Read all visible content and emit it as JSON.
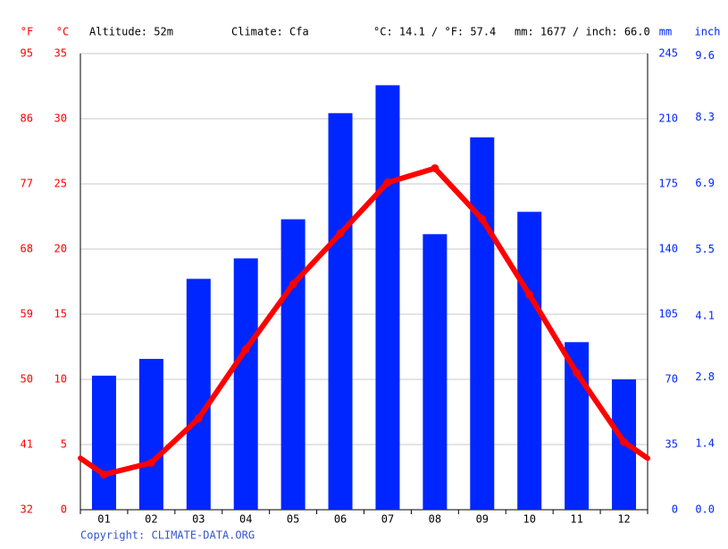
{
  "chart_data": {
    "type": "bar",
    "y_alt_unit": "°F",
    "y_unit": "°C",
    "altitude": "Altitude: 52m",
    "climate": "Climate: Cfa",
    "temp_summary": "°C: 14.1 / °F: 57.4",
    "precip_summary": "mm: 1677 / inch: 66.0",
    "y2_unit": "mm",
    "y2_alt_unit": "inch",
    "copyright": "Copyright: CLIMATE-DATA.ORG",
    "categories": [
      "01",
      "02",
      "03",
      "04",
      "05",
      "06",
      "07",
      "08",
      "09",
      "10",
      "11",
      "12"
    ],
    "series": [
      {
        "type": "bar",
        "axis": "y2",
        "color": "#0026ff",
        "values": [
          72,
          81,
          124,
          135,
          156,
          213,
          228,
          148,
          200,
          160,
          90,
          70
        ]
      },
      {
        "type": "line",
        "axis": "y",
        "color": "#ff0000",
        "values": [
          2.7,
          3.6,
          7.0,
          12.3,
          17.3,
          21.2,
          25.1,
          26.2,
          22.3,
          16.5,
          10.5,
          5.2
        ]
      }
    ],
    "ylim": [
      0,
      35
    ],
    "yticks": [
      0,
      5,
      10,
      15,
      20,
      25,
      30,
      35
    ],
    "y_alt_lim": [
      32,
      95
    ],
    "y_alt_ticks": [
      32,
      41,
      50,
      59,
      68,
      77,
      86,
      95
    ],
    "y2lim": [
      0,
      245
    ],
    "y2ticks": [
      0,
      35,
      70,
      105,
      140,
      175,
      210,
      245
    ],
    "y2_alt_lim": [
      0,
      9.646
    ],
    "y2_alt_ticks": [
      {
        "value": 0,
        "label": "0.0"
      },
      1.4,
      2.8,
      4.1,
      5.5,
      6.9,
      8.3,
      9.6
    ],
    "grid": true
  }
}
